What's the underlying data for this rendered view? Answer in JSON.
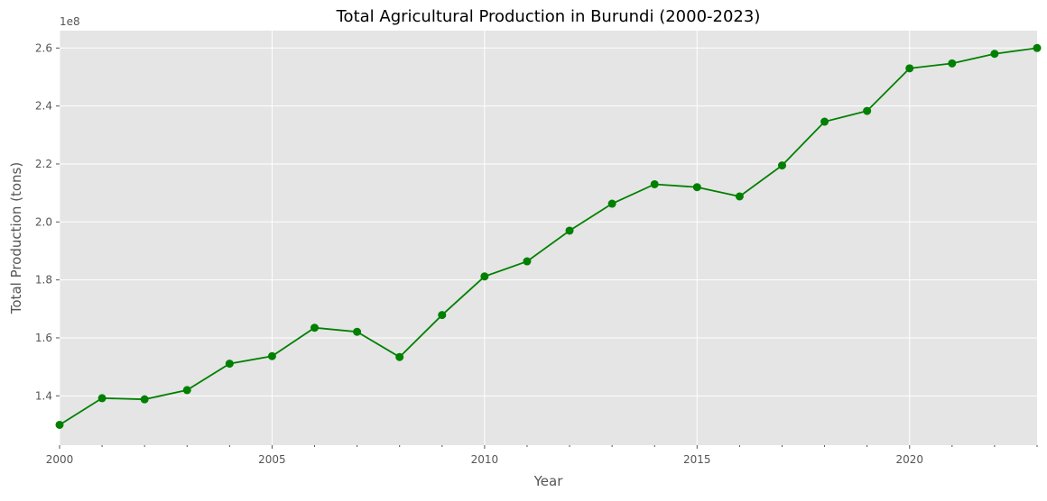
{
  "chart_data": {
    "type": "line",
    "title": "Total Agricultural Production in Burundi (2000-2023)",
    "xlabel": "Year",
    "ylabel": "Total Production (tons)",
    "y_offset_label": "1e8",
    "xlim": [
      2000,
      2023
    ],
    "ylim": [
      123000000,
      266000000
    ],
    "x_major_ticks": [
      2000,
      2005,
      2010,
      2015,
      2020
    ],
    "x_tick_labels": [
      "2000",
      "2005",
      "2010",
      "2015",
      "2020"
    ],
    "y_ticks": [
      140000000,
      160000000,
      180000000,
      200000000,
      220000000,
      240000000,
      260000000
    ],
    "y_tick_labels": [
      "1.4",
      "1.6",
      "1.8",
      "2.0",
      "2.2",
      "2.4",
      "2.6"
    ],
    "grid": true,
    "series": [
      {
        "color": "#008000",
        "marker": "circle",
        "x": [
          2000,
          2001,
          2002,
          2003,
          2004,
          2005,
          2006,
          2007,
          2008,
          2009,
          2010,
          2011,
          2012,
          2013,
          2014,
          2015,
          2016,
          2017,
          2018,
          2019,
          2020,
          2021,
          2022,
          2023
        ],
        "values": [
          130000000,
          139200000,
          138800000,
          142000000,
          151100000,
          153700000,
          163500000,
          162100000,
          153400000,
          167900000,
          181200000,
          186400000,
          197000000,
          206300000,
          213000000,
          212000000,
          208800000,
          219500000,
          234600000,
          238300000,
          253000000,
          254700000,
          258000000,
          260000000
        ]
      }
    ],
    "colors": {
      "background": "#e5e5e5",
      "grid": "#ffffff",
      "text": "#555555",
      "title": "#000000"
    }
  }
}
